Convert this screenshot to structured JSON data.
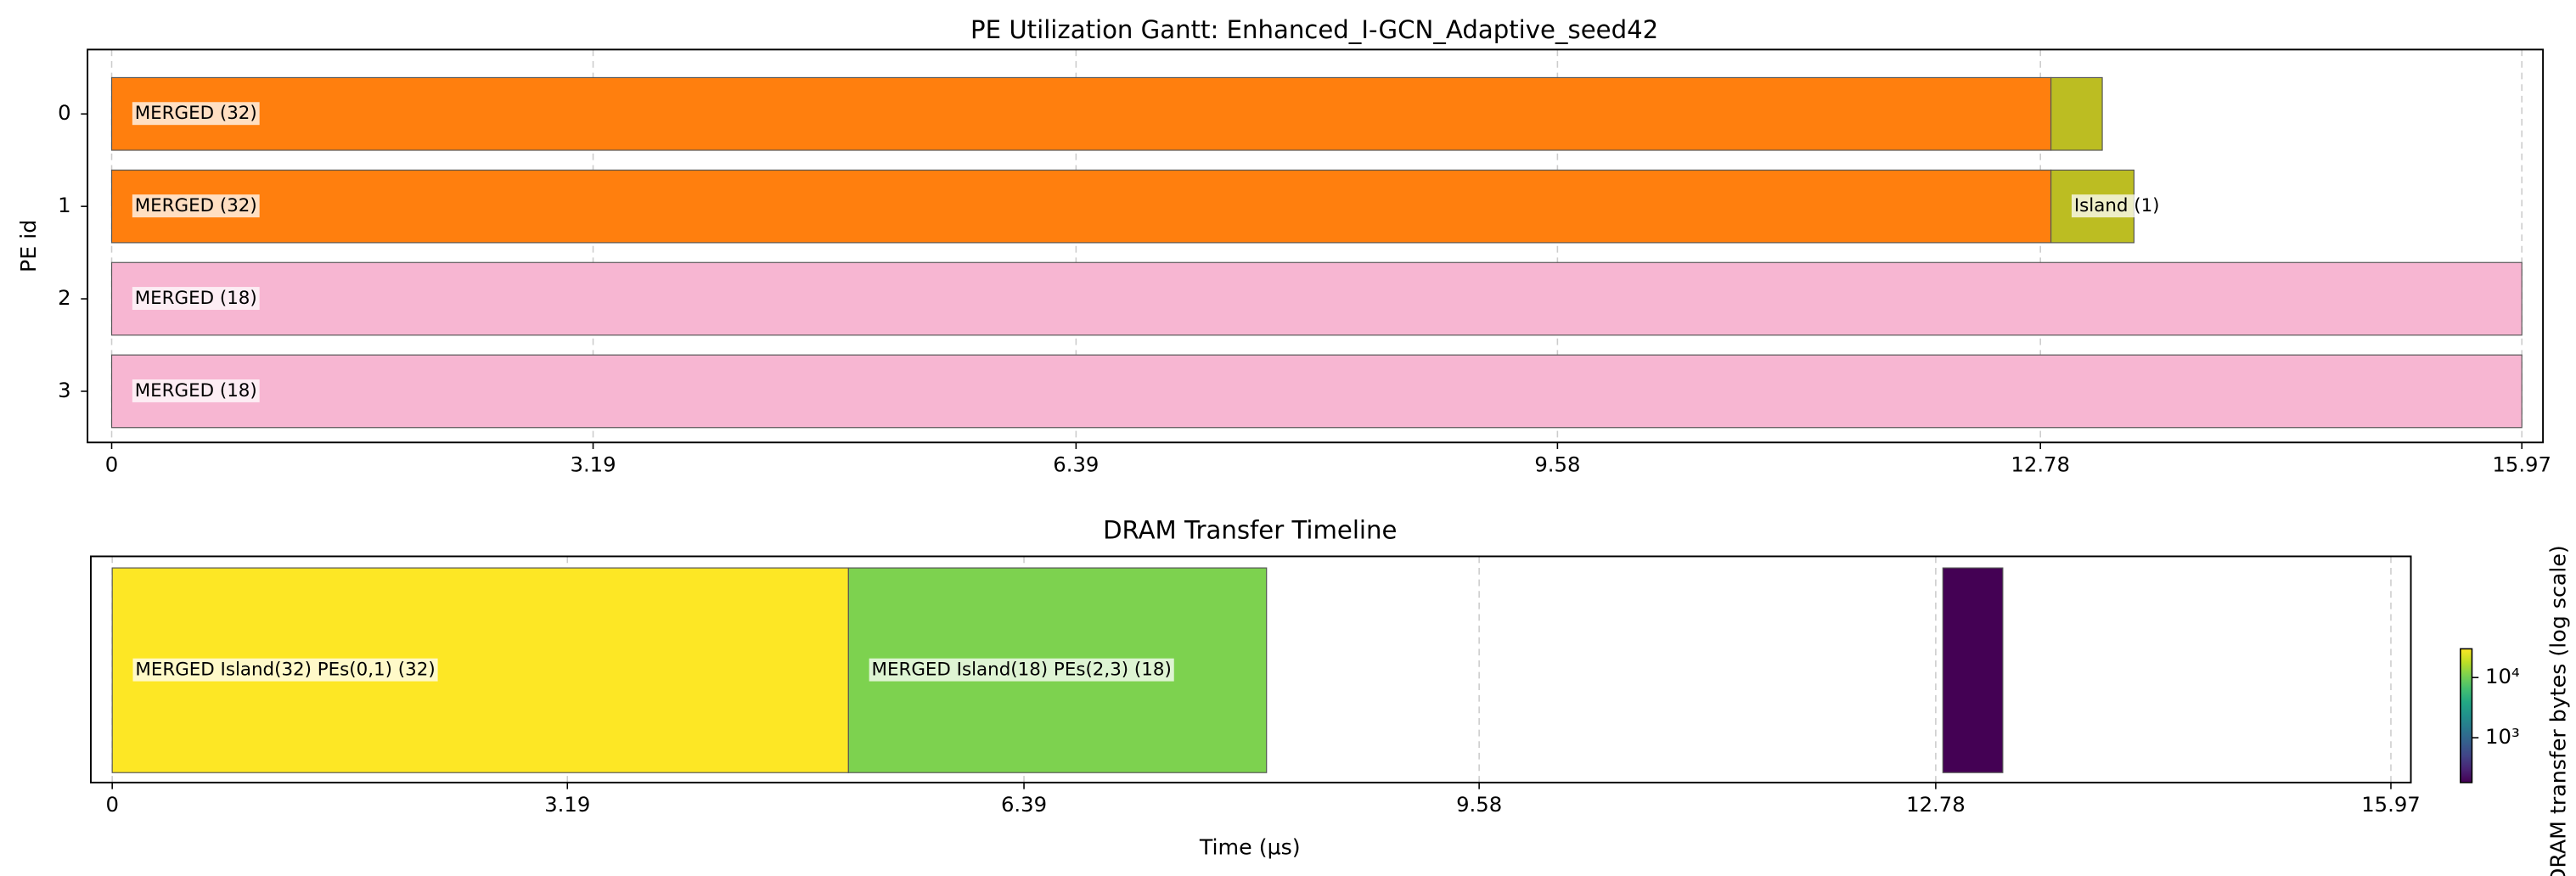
{
  "chart_data": [
    {
      "type": "gantt",
      "title": "PE Utilization Gantt: Enhanced_I-GCN_Adaptive_seed42",
      "ylabel": "PE id",
      "categories": [
        "0",
        "1",
        "2",
        "3"
      ],
      "xlim": [
        -0.16,
        16.11
      ],
      "xticks": [
        0,
        3.19,
        6.39,
        9.58,
        12.78,
        15.97
      ],
      "grid": true,
      "segments": [
        {
          "row": 0,
          "start": 0,
          "end": 12.85,
          "label": "MERGED (32)",
          "color": "#ff7f0e"
        },
        {
          "row": 0,
          "start": 12.85,
          "end": 13.19,
          "color": "#bcbd22"
        },
        {
          "row": 1,
          "start": 0,
          "end": 12.85,
          "label": "MERGED (32)",
          "color": "#ff7f0e"
        },
        {
          "row": 1,
          "start": 12.85,
          "end": 13.4,
          "label": "Island (1)",
          "color": "#bcbd22"
        },
        {
          "row": 2,
          "start": 0,
          "end": 15.97,
          "label": "MERGED (18)",
          "color": "#f7b6d2"
        },
        {
          "row": 3,
          "start": 0,
          "end": 15.97,
          "label": "MERGED (18)",
          "color": "#f7b6d2"
        }
      ]
    },
    {
      "type": "timeline",
      "title": "DRAM Transfer Timeline",
      "xlabel": "Time (µs)",
      "xlim": [
        -0.15,
        16.11
      ],
      "xticks": [
        0,
        3.19,
        6.39,
        9.58,
        12.78,
        15.97
      ],
      "grid": true,
      "segments": [
        {
          "start": 0,
          "end": 5.16,
          "value": 30000,
          "label": "MERGED Island(32) PEs(0,1) (32)"
        },
        {
          "start": 5.16,
          "end": 8.09,
          "value": 11000,
          "label": "MERGED Island(18) PEs(2,3) (18)"
        },
        {
          "start": 12.83,
          "end": 13.25,
          "value": 180
        }
      ],
      "colorbar": {
        "label": "DRAM transfer bytes (log scale)",
        "colormap": "viridis",
        "scale": "log",
        "lim": [
          180,
          30000
        ],
        "ticks": [
          {
            "value": 1000,
            "label": "10³"
          },
          {
            "value": 10000,
            "label": "10⁴"
          }
        ]
      }
    }
  ]
}
